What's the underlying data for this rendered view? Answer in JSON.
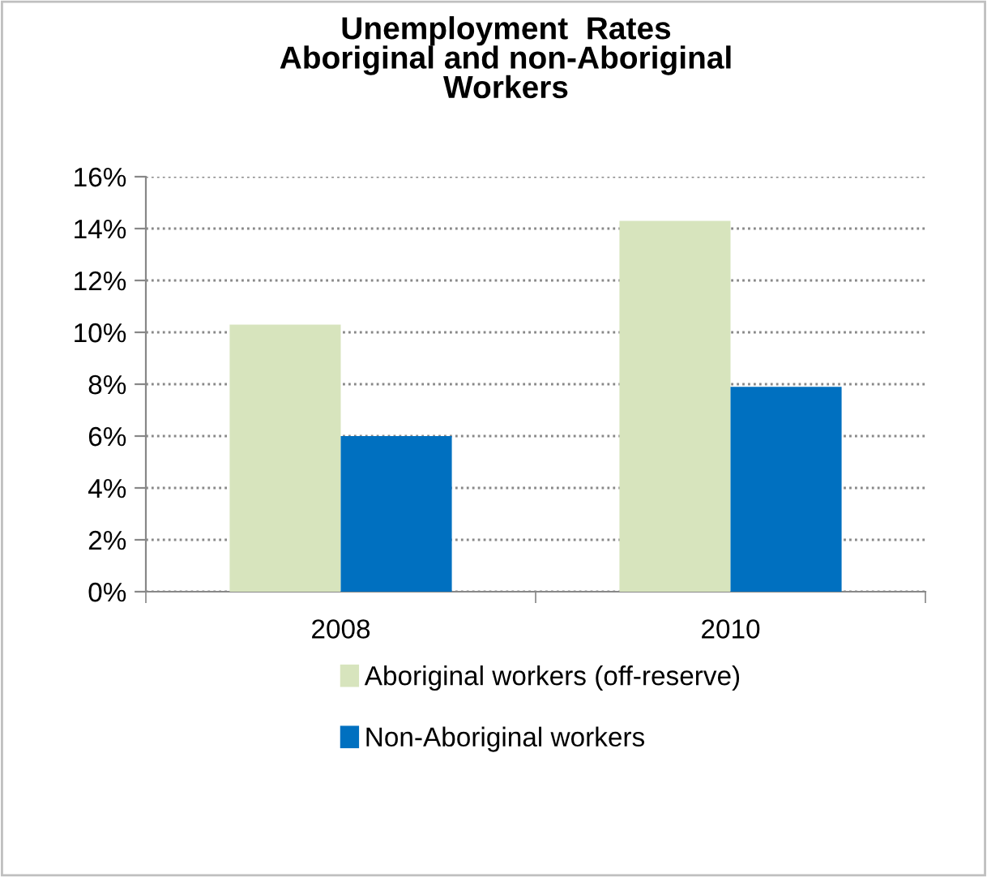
{
  "chart_data": {
    "type": "bar",
    "title": "Unemployment  Rates\nAboriginal and non-Aboriginal\nWorkers",
    "categories": [
      "2008",
      "2010"
    ],
    "series": [
      {
        "name": "Aboriginal workers (off-reserve)",
        "color": "#d7e4bd",
        "values": [
          10.3,
          14.3
        ]
      },
      {
        "name": "Non-Aboriginal workers",
        "color": "#0070c0",
        "values": [
          6.0,
          7.9
        ]
      }
    ],
    "ylim": [
      0,
      16
    ],
    "yticks": [
      {
        "value": 0,
        "label": "0%"
      },
      {
        "value": 2,
        "label": "2%"
      },
      {
        "value": 4,
        "label": "4%"
      },
      {
        "value": 6,
        "label": "6%"
      },
      {
        "value": 8,
        "label": "8%"
      },
      {
        "value": 10,
        "label": "10%"
      },
      {
        "value": 12,
        "label": "12%"
      },
      {
        "value": 14,
        "label": "14%"
      },
      {
        "value": 16,
        "label": "16%"
      }
    ],
    "grid": "y",
    "legend": "bottom"
  }
}
